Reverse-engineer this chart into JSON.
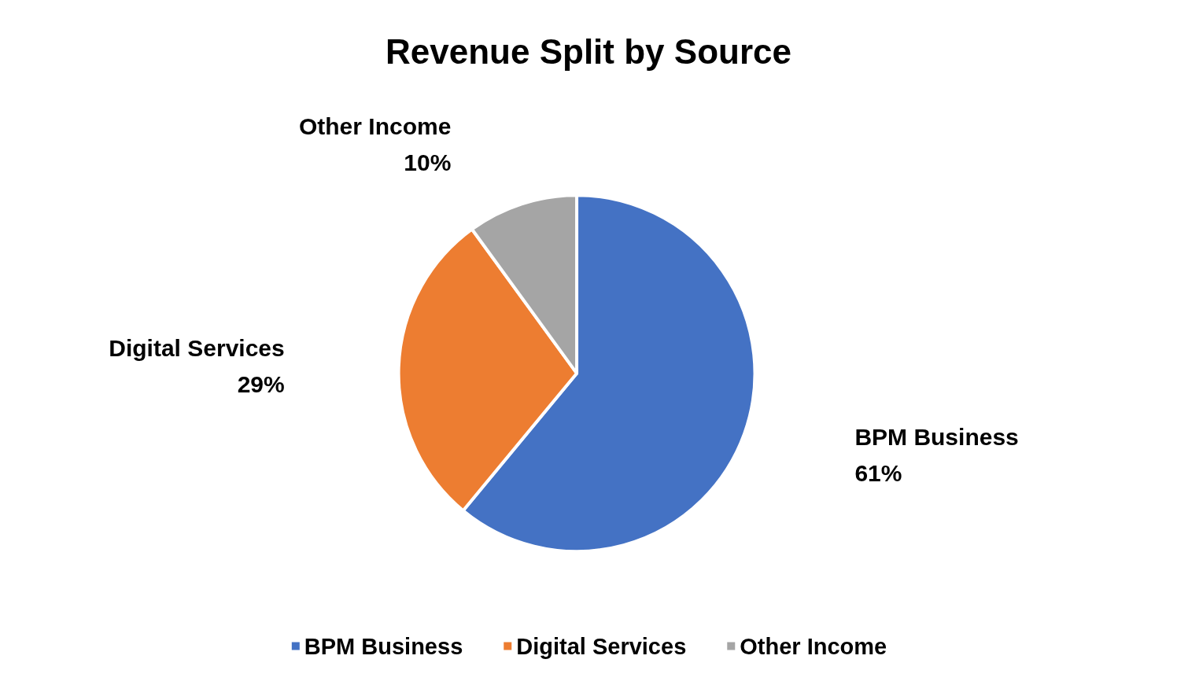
{
  "chart_data": {
    "type": "pie",
    "title": "Revenue Split by Source",
    "categories": [
      "BPM Business",
      "Digital Services",
      "Other Income"
    ],
    "values": [
      61,
      29,
      10
    ],
    "colors": [
      "#4472c4",
      "#ed7d31",
      "#a5a5a5"
    ],
    "value_labels": [
      "61%",
      "29%",
      "10%"
    ],
    "legend": "bottom"
  }
}
